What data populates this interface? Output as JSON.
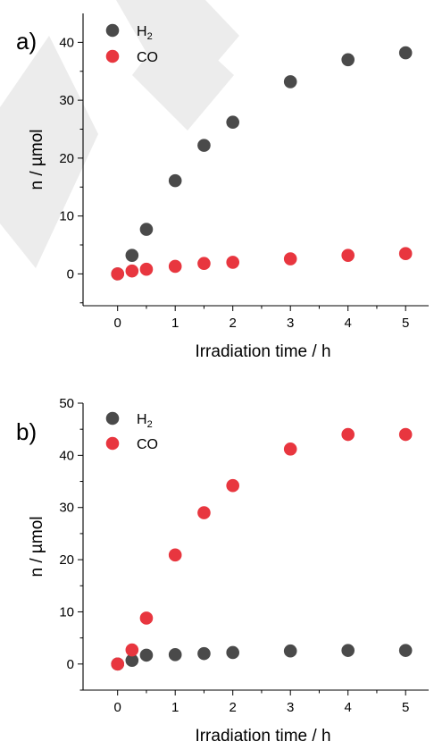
{
  "chart_data": [
    {
      "type": "scatter",
      "panel_label": "a)",
      "xlabel": "Irradiation time / h",
      "ylabel": "n / µmol",
      "xlim": [
        -0.6,
        5.4
      ],
      "ylim": [
        -5.5,
        45
      ],
      "xticks": [
        0,
        1,
        2,
        3,
        4,
        5
      ],
      "yticks": [
        0,
        10,
        20,
        30,
        40
      ],
      "grid": false,
      "legend_position": "top-left",
      "series": [
        {
          "name": "H",
          "name_sub": "2",
          "color": "#4a4a4a",
          "x": [
            0,
            0.25,
            0.5,
            1,
            1.5,
            2,
            3,
            4,
            5
          ],
          "y": [
            0,
            3.2,
            7.7,
            16.1,
            22.2,
            26.2,
            33.2,
            37.0,
            38.2
          ]
        },
        {
          "name": "CO",
          "color": "#e8363f",
          "x": [
            0,
            0.25,
            0.5,
            1,
            1.5,
            2,
            3,
            4,
            5
          ],
          "y": [
            0,
            0.5,
            0.8,
            1.3,
            1.8,
            2.0,
            2.6,
            3.2,
            3.5
          ]
        }
      ]
    },
    {
      "type": "scatter",
      "panel_label": "b)",
      "xlabel": "Irradiation time / h",
      "ylabel": "n / µmol",
      "xlim": [
        -0.6,
        5.4
      ],
      "ylim": [
        -5,
        50
      ],
      "xticks": [
        0,
        1,
        2,
        3,
        4,
        5
      ],
      "yticks": [
        0,
        10,
        20,
        30,
        40,
        50
      ],
      "grid": false,
      "legend_position": "top-left",
      "series": [
        {
          "name": "H",
          "name_sub": "2",
          "color": "#4a4a4a",
          "x": [
            0,
            0.25,
            0.5,
            1,
            1.5,
            2,
            3,
            4,
            5
          ],
          "y": [
            0,
            0.7,
            1.7,
            1.8,
            2.0,
            2.2,
            2.5,
            2.6,
            2.6
          ]
        },
        {
          "name": "CO",
          "color": "#e8363f",
          "x": [
            0,
            0.25,
            0.5,
            1,
            1.5,
            2,
            3,
            4,
            5
          ],
          "y": [
            0,
            2.7,
            8.8,
            20.9,
            29.0,
            34.2,
            41.2,
            44.0,
            44.0
          ]
        }
      ]
    }
  ]
}
